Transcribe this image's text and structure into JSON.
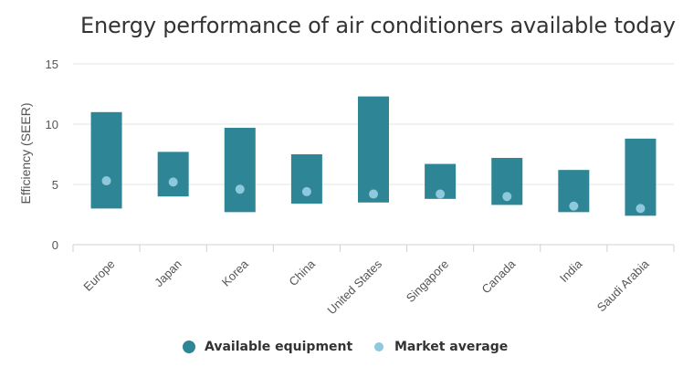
{
  "title": "Energy performance of air conditioners available today",
  "chart_data": {
    "type": "bar",
    "title": "Energy performance of air conditioners available today",
    "ylabel": "Efficiency (SEER)",
    "xlabel": "",
    "ylim": [
      0,
      15
    ],
    "yticks": [
      0,
      5,
      10,
      15
    ],
    "grid": true,
    "legend_position": "bottom",
    "categories": [
      "Europe",
      "Japan",
      "Korea",
      "China",
      "United States",
      "Singapore",
      "Canada",
      "India",
      "Saudi Arabia"
    ],
    "series": [
      {
        "name": "Available equipment",
        "type": "range",
        "color": "#2e8596",
        "low": [
          3.0,
          4.0,
          2.7,
          3.4,
          3.5,
          3.8,
          3.3,
          2.7,
          2.4
        ],
        "high": [
          11.0,
          7.7,
          9.7,
          7.5,
          12.3,
          6.7,
          7.2,
          6.2,
          8.8
        ]
      },
      {
        "name": "Market average",
        "type": "point",
        "color": "#8ec8dc",
        "values": [
          5.3,
          5.2,
          4.6,
          4.4,
          4.2,
          4.2,
          4.0,
          3.2,
          3.0
        ]
      }
    ]
  }
}
